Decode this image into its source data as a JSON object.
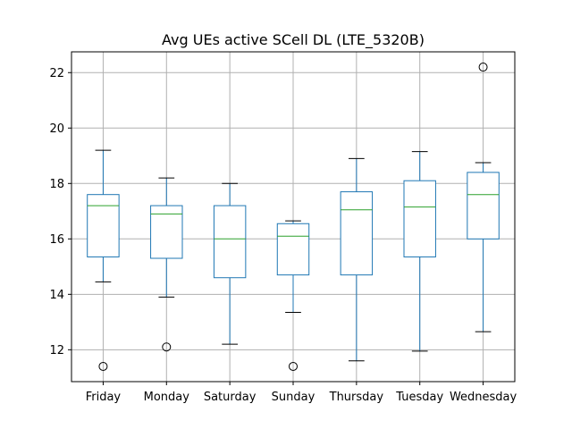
{
  "chart_data": {
    "type": "box",
    "title": "Avg UEs active SCell DL (LTE_5320B)",
    "xlabel": "",
    "ylabel": "",
    "ylim": [
      10.85,
      22.75
    ],
    "yticks": [
      12,
      14,
      16,
      18,
      20,
      22
    ],
    "grid": true,
    "legend": "none",
    "colors": {
      "box": "#1f77b4",
      "median": "#2ca02c",
      "whisker_cap": "#000000",
      "grid": "#b0b0b0"
    },
    "categories": [
      "Friday",
      "Monday",
      "Saturday",
      "Sunday",
      "Thursday",
      "Tuesday",
      "Wednesday"
    ],
    "boxes": [
      {
        "category": "Friday",
        "whisker_low": 14.45,
        "q1": 15.35,
        "median": 17.2,
        "q3": 17.6,
        "whisker_high": 19.2,
        "outliers": [
          11.4
        ]
      },
      {
        "category": "Monday",
        "whisker_low": 13.9,
        "q1": 15.3,
        "median": 16.9,
        "q3": 17.2,
        "whisker_high": 18.2,
        "outliers": [
          12.1
        ]
      },
      {
        "category": "Saturday",
        "whisker_low": 12.2,
        "q1": 14.6,
        "median": 16.0,
        "q3": 17.2,
        "whisker_high": 18.0,
        "outliers": []
      },
      {
        "category": "Sunday",
        "whisker_low": 13.35,
        "q1": 14.7,
        "median": 16.1,
        "q3": 16.55,
        "whisker_high": 16.65,
        "outliers": [
          11.4
        ]
      },
      {
        "category": "Thursday",
        "whisker_low": 11.6,
        "q1": 14.7,
        "median": 17.05,
        "q3": 17.7,
        "whisker_high": 18.9,
        "outliers": []
      },
      {
        "category": "Tuesday",
        "whisker_low": 11.95,
        "q1": 15.35,
        "median": 17.15,
        "q3": 18.1,
        "whisker_high": 19.15,
        "outliers": []
      },
      {
        "category": "Wednesday",
        "whisker_low": 12.65,
        "q1": 16.0,
        "median": 17.6,
        "q3": 18.4,
        "whisker_high": 18.75,
        "outliers": [
          22.2
        ]
      }
    ]
  }
}
